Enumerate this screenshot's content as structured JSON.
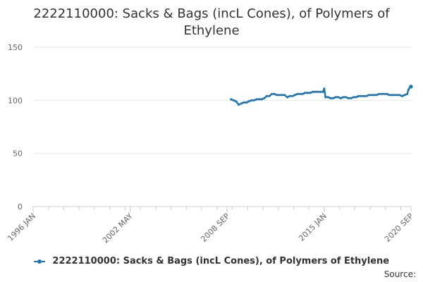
{
  "colors": {
    "series": "#1f77b4",
    "grid": "#e6e6e6",
    "axis": "#cccccc",
    "text": "#666666"
  },
  "credits": "Source:",
  "chart_data": {
    "type": "line",
    "title_line1": "2222110000: Sacks & Bags (incL Cones), of Polymers of",
    "title_line2": "Ethylene",
    "ylim": [
      0,
      150
    ],
    "yticks": [
      "0",
      "50",
      "100",
      "150"
    ],
    "xlim": [
      "1996-01",
      "2020-09"
    ],
    "xticks": [
      "1996 JAN",
      "2002 MAY",
      "2008 SEP",
      "2015 JAN",
      "2020 SEP"
    ],
    "legend_position": "bottom",
    "series": [
      {
        "name": "2222110000: Sacks & Bags (incL Cones), of Polymers of Ethylene",
        "x": [
          "2008-12",
          "2009-02",
          "2009-04",
          "2009-06",
          "2009-08",
          "2009-10",
          "2009-12",
          "2010-02",
          "2010-04",
          "2010-06",
          "2010-08",
          "2010-10",
          "2010-12",
          "2011-02",
          "2011-04",
          "2011-06",
          "2011-08",
          "2011-10",
          "2011-12",
          "2012-02",
          "2012-04",
          "2012-06",
          "2012-08",
          "2012-10",
          "2012-12",
          "2013-02",
          "2013-04",
          "2013-06",
          "2013-08",
          "2013-10",
          "2013-12",
          "2014-02",
          "2014-04",
          "2014-06",
          "2014-08",
          "2014-10",
          "2014-12",
          "2015-01",
          "2015-02",
          "2015-04",
          "2015-06",
          "2015-08",
          "2015-10",
          "2015-12",
          "2016-02",
          "2016-04",
          "2016-06",
          "2016-08",
          "2016-10",
          "2016-12",
          "2017-02",
          "2017-04",
          "2017-06",
          "2017-08",
          "2017-10",
          "2017-12",
          "2018-02",
          "2018-04",
          "2018-06",
          "2018-08",
          "2018-10",
          "2018-12",
          "2019-02",
          "2019-04",
          "2019-06",
          "2019-08",
          "2019-10",
          "2019-12",
          "2020-02",
          "2020-04",
          "2020-06",
          "2020-07",
          "2020-08",
          "2020-09"
        ],
        "values": [
          101,
          100,
          99,
          96,
          97,
          98,
          98,
          99,
          100,
          100,
          101,
          101,
          101,
          102,
          104,
          104,
          106,
          106,
          105,
          105,
          105,
          105,
          103,
          104,
          104,
          105,
          106,
          106,
          106,
          107,
          107,
          107,
          108,
          108,
          108,
          108,
          108,
          111,
          103,
          103,
          102,
          102,
          103,
          103,
          102,
          103,
          103,
          102,
          102,
          103,
          103,
          104,
          104,
          104,
          104,
          105,
          105,
          105,
          105,
          106,
          106,
          106,
          106,
          105,
          105,
          105,
          105,
          105,
          104,
          105,
          106,
          110,
          112,
          113
        ]
      }
    ]
  }
}
